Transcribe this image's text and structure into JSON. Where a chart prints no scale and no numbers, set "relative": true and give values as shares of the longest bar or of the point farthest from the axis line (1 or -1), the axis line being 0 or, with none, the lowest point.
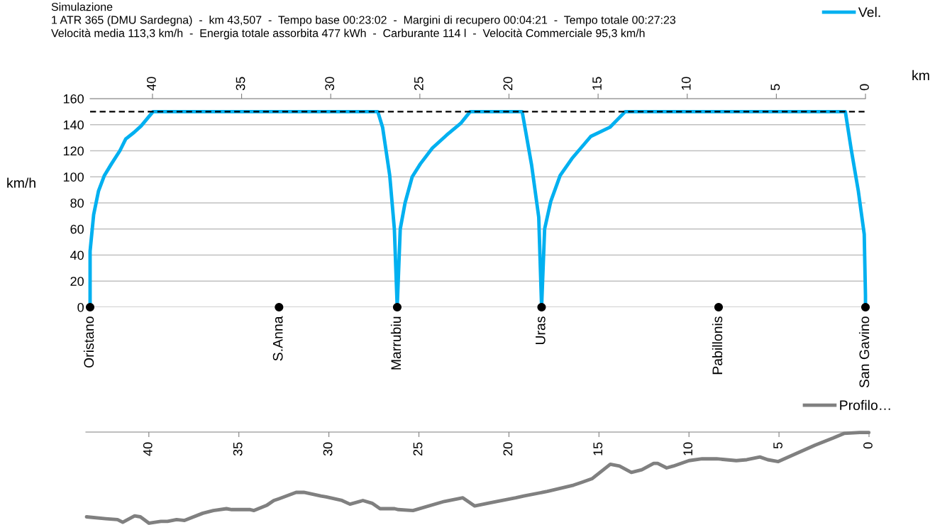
{
  "chart_data": [
    {
      "type": "line",
      "title": "Simulazione",
      "subtitle": "1 ATR 365 (DMU Sardegna)  -  km 43,507  -  Tempo base 00:23:02  -  Margini di recupero 00:04:21  -  Tempo totale 00:27:23\nVelocità media 113,3 km/h  -  Energia totale assorbita 477 kWh  -  Carburante 114 l  -  Velocità Commerciale 95,3 km/h",
      "xlabel": "km",
      "ylabel": "km/h",
      "xlim": [
        43.5,
        0
      ],
      "xticks": [
        40,
        35,
        30,
        25,
        20,
        15,
        10,
        5,
        0
      ],
      "ylim": [
        0,
        160
      ],
      "yticks": [
        0,
        20,
        40,
        60,
        80,
        100,
        120,
        140,
        160
      ],
      "grid": "y",
      "legend": "top right",
      "line_style": "solid",
      "ref_lines": [
        {
          "axis": "y",
          "value": 150,
          "color": "#000000",
          "line_style": "dashed"
        }
      ],
      "series": [
        {
          "name": "Vel.",
          "color": "#00b0f0",
          "marker": "none",
          "x": [
            43.5,
            43.5,
            43.3,
            43.03,
            42.7,
            42.3,
            41.83,
            41.5,
            41.04,
            40.64,
            39.97,
            27.36,
            27.09,
            26.69,
            26.43,
            26.27,
            26.1,
            25.83,
            25.43,
            24.97,
            24.3,
            23.5,
            22.71,
            22.18,
            19.26,
            18.73,
            18.33,
            18.17,
            18.0,
            17.66,
            17.13,
            16.47,
            15.41,
            14.34,
            13.48,
            1.13,
            0.8,
            0.4,
            0.07,
            0,
            0
          ],
          "values": [
            0,
            43,
            71,
            89,
            101,
            110,
            120,
            129,
            134,
            139,
            150,
            150,
            138,
            101,
            60,
            0,
            60,
            80,
            100,
            110,
            122,
            132,
            141,
            150,
            150,
            109,
            69,
            0,
            60,
            81,
            101,
            114,
            131,
            138,
            150,
            150,
            121,
            89,
            56,
            9,
            0
          ]
        },
        {
          "type": "scatter",
          "color": "#000000",
          "marker": "circle",
          "x": [
            43.5,
            32.9,
            26.27,
            18.17,
            8.24,
            0
          ],
          "values": [
            0,
            0,
            0,
            0,
            0,
            0
          ]
        }
      ],
      "annotations": [
        {
          "text": "Oristano",
          "x": 43.5,
          "y": 0
        },
        {
          "text": "S.Anna",
          "x": 32.9,
          "y": 0
        },
        {
          "text": "Marrubiu",
          "x": 26.27,
          "y": 0
        },
        {
          "text": "Uras",
          "x": 18.17,
          "y": 0
        },
        {
          "text": "Pabillonis",
          "x": 8.24,
          "y": 0
        },
        {
          "text": "San Gavino",
          "x": 0,
          "y": 0
        }
      ]
    },
    {
      "type": "line",
      "relative": true,
      "tick_labels": "x",
      "legend": "top right",
      "line_style": "solid",
      "xlim": [
        43.5,
        0
      ],
      "xticks": [
        40,
        35,
        30,
        25,
        20,
        15,
        10,
        5,
        0
      ],
      "series": [
        {
          "name": "Profilo…",
          "color": "#808080",
          "marker": "none",
          "x": [
            43.46,
            42.4,
            41.74,
            41.45,
            40.79,
            40.47,
            39.99,
            39.33,
            38.96,
            38.46,
            38.02,
            37.0,
            36.42,
            35.69,
            35.4,
            34.37,
            34.16,
            33.43,
            33.06,
            32.77,
            31.82,
            31.39,
            30.44,
            30.15,
            29.27,
            28.83,
            28.11,
            27.6,
            27.16,
            26.35,
            26.14,
            25.33,
            23.59,
            22.56,
            21.9,
            20.93,
            19.62,
            19.18,
            17.87,
            16.41,
            15.97,
            15.39,
            14.37,
            13.86,
            13.2,
            12.62,
            11.96,
            11.74,
            11.24,
            10.87,
            10.0,
            9.27,
            8.46,
            7.37,
            6.79,
            6.06,
            5.62,
            5.04,
            4.02,
            3.0,
            1.98,
            1.39,
            0.52,
            0.01
          ],
          "values": [
            -0.93,
            -0.95,
            -0.96,
            -0.99,
            -0.92,
            -0.93,
            -1,
            -0.98,
            -0.98,
            -0.96,
            -0.97,
            -0.89,
            -0.86,
            -0.84,
            -0.85,
            -0.85,
            -0.86,
            -0.8,
            -0.75,
            -0.73,
            -0.66,
            -0.66,
            -0.7,
            -0.71,
            -0.75,
            -0.79,
            -0.75,
            -0.78,
            -0.84,
            -0.84,
            -0.85,
            -0.86,
            -0.76,
            -0.72,
            -0.81,
            -0.77,
            -0.72,
            -0.7,
            -0.65,
            -0.58,
            -0.55,
            -0.51,
            -0.35,
            -0.37,
            -0.44,
            -0.41,
            -0.34,
            -0.34,
            -0.39,
            -0.37,
            -0.31,
            -0.29,
            -0.29,
            -0.31,
            -0.3,
            -0.27,
            -0.3,
            -0.32,
            -0.23,
            -0.14,
            -0.06,
            -0.01,
            0,
            0
          ]
        }
      ]
    }
  ]
}
